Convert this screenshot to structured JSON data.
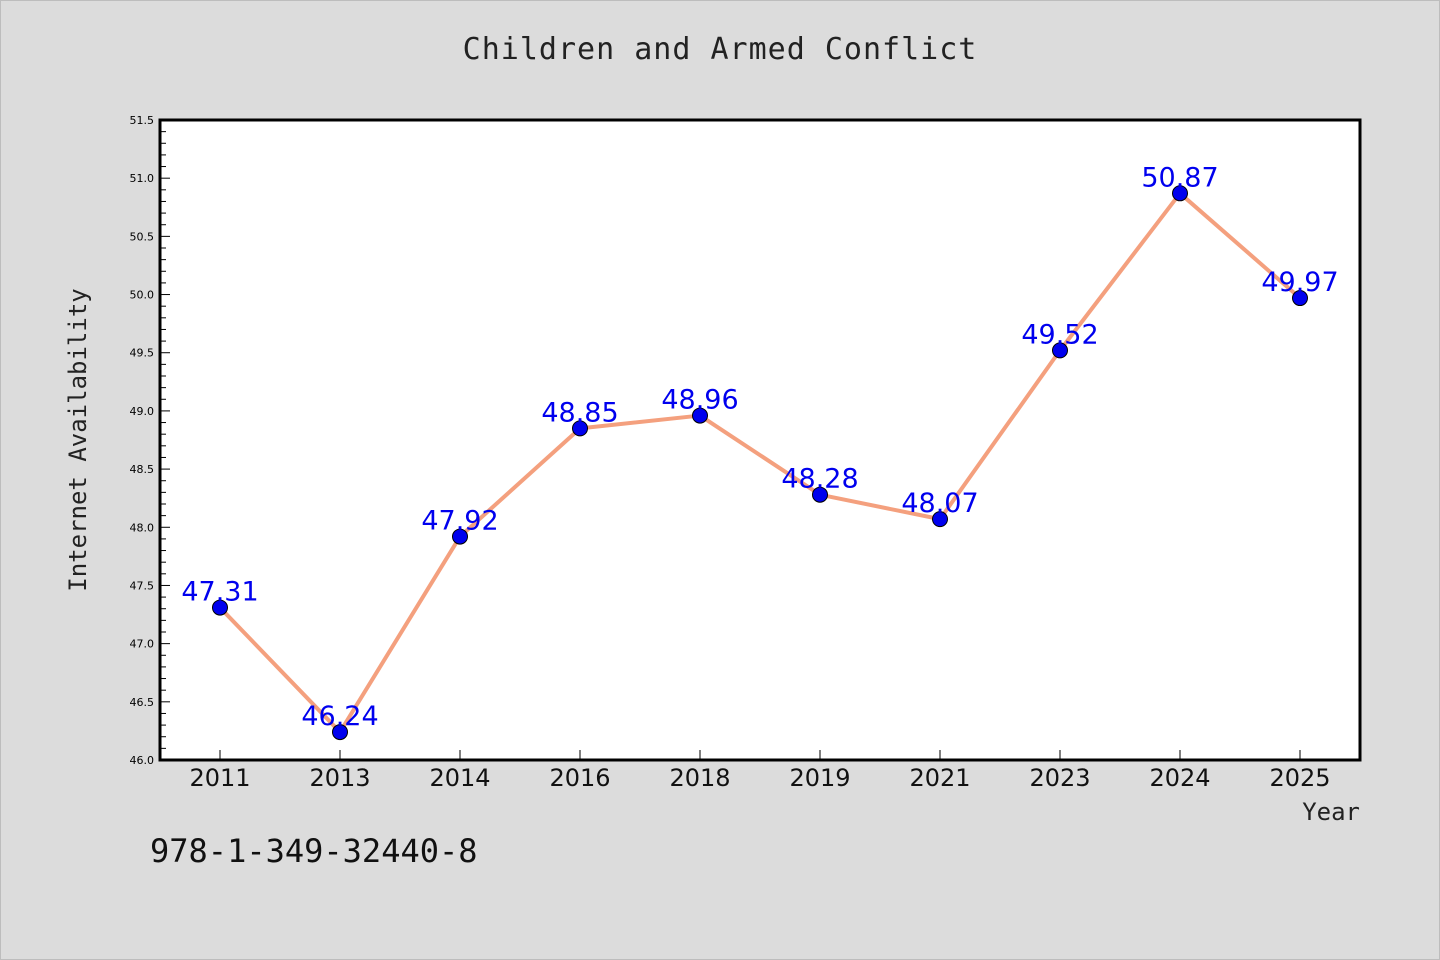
{
  "chart_data": {
    "type": "line",
    "title": "Children and Armed Conflict",
    "xlabel": "Year",
    "ylabel": "Internet Availability",
    "categories": [
      "2011",
      "2013",
      "2014",
      "2016",
      "2018",
      "2019",
      "2021",
      "2023",
      "2024",
      "2025"
    ],
    "series": [
      {
        "values": [
          47.31,
          46.24,
          47.92,
          48.85,
          48.96,
          48.28,
          48.07,
          49.52,
          50.87,
          49.97
        ],
        "line_color": "#f4a07e",
        "marker_color": "#0000ee"
      }
    ],
    "data_labels": [
      "47.31",
      "46.24",
      "47.92",
      "48.85",
      "48.96",
      "48.28",
      "48.07",
      "49.52",
      "50.87",
      "49.97"
    ],
    "ylim": [
      46.0,
      51.5
    ],
    "yticks": [
      "46.0",
      "46.5",
      "47.0",
      "47.5",
      "48.0",
      "48.5",
      "49.0",
      "49.5",
      "50.0",
      "50.5",
      "51.0",
      "51.5"
    ],
    "grid": false,
    "legend": false,
    "label_color": "#0000ee"
  },
  "footer": {
    "isbn": "978-1-349-32440-8"
  }
}
